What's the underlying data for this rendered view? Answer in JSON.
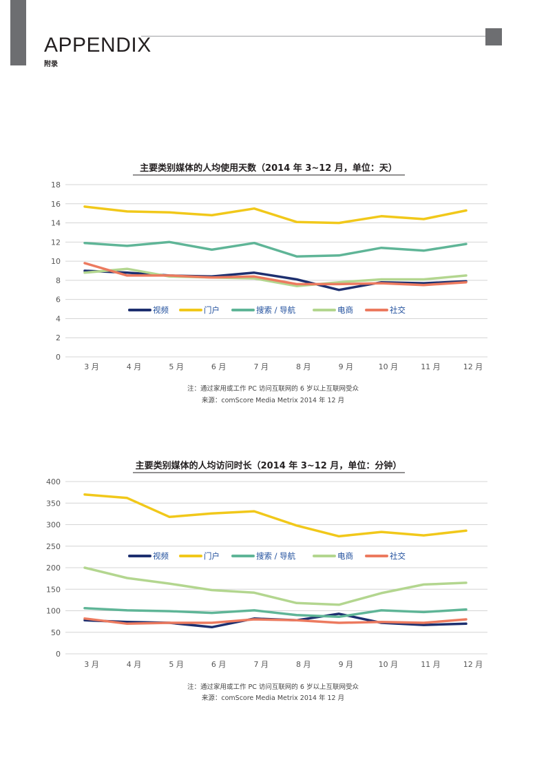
{
  "header": {
    "title": "APPENDIX",
    "subtitle": "附录"
  },
  "legend_colors": {
    "视频": "#1d2f6f",
    "门户": "#f1c81a",
    "搜索 / 导航": "#5fb597",
    "电商": "#b3d68f",
    "社交": "#ec7a5f"
  },
  "chart_data": [
    {
      "type": "line",
      "title": "主要类别媒体的人均使用天数（2014 年 3~12 月，单位：天）",
      "categories": [
        "3 月",
        "4 月",
        "5 月",
        "6 月",
        "7 月",
        "8 月",
        "9 月",
        "10 月",
        "11 月",
        "12 月"
      ],
      "ylim": [
        0,
        18
      ],
      "yticks": [
        0,
        2,
        4,
        6,
        8,
        10,
        12,
        14,
        16,
        18
      ],
      "grid": true,
      "legend_position": "center",
      "series": [
        {
          "name": "视频",
          "color": "#1d2f6f",
          "values": [
            9.0,
            8.8,
            8.5,
            8.4,
            8.8,
            8.1,
            7.0,
            7.8,
            7.7,
            7.9
          ]
        },
        {
          "name": "门户",
          "color": "#f1c81a",
          "values": [
            15.7,
            15.2,
            15.1,
            14.8,
            15.5,
            14.1,
            14.0,
            14.7,
            14.4,
            15.3
          ]
        },
        {
          "name": "搜索 / 导航",
          "color": "#5fb597",
          "values": [
            11.9,
            11.6,
            12.0,
            11.2,
            11.9,
            10.5,
            10.6,
            11.4,
            11.1,
            11.8
          ]
        },
        {
          "name": "电商",
          "color": "#b3d68f",
          "values": [
            8.8,
            9.2,
            8.4,
            8.3,
            8.2,
            7.4,
            7.8,
            8.1,
            8.1,
            8.5
          ]
        },
        {
          "name": "社交",
          "color": "#ec7a5f",
          "values": [
            9.8,
            8.5,
            8.5,
            8.3,
            8.4,
            7.6,
            7.6,
            7.7,
            7.5,
            7.8
          ]
        }
      ],
      "notes": [
        "注：通过家用或工作 PC 访问互联网的 6 岁以上互联网受众",
        "来源：comScore Media Metrix 2014 年 12 月"
      ]
    },
    {
      "type": "line",
      "title": "主要类别媒体的人均访问时长（2014 年 3~12 月，单位：分钟）",
      "categories": [
        "3 月",
        "4 月",
        "5 月",
        "6 月",
        "7 月",
        "8 月",
        "9 月",
        "10 月",
        "11 月",
        "12 月"
      ],
      "ylim": [
        0,
        400
      ],
      "yticks": [
        0,
        50,
        100,
        150,
        200,
        250,
        300,
        350,
        400
      ],
      "grid": true,
      "legend_position": "center",
      "series": [
        {
          "name": "视频",
          "color": "#1d2f6f",
          "values": [
            78,
            74,
            72,
            62,
            82,
            78,
            93,
            72,
            67,
            70
          ]
        },
        {
          "name": "门户",
          "color": "#f1c81a",
          "values": [
            370,
            362,
            318,
            326,
            331,
            298,
            273,
            283,
            275,
            286
          ]
        },
        {
          "name": "搜索 / 导航",
          "color": "#5fb597",
          "values": [
            106,
            101,
            99,
            95,
            101,
            90,
            86,
            101,
            97,
            103
          ]
        },
        {
          "name": "电商",
          "color": "#b3d68f",
          "values": [
            200,
            176,
            163,
            148,
            142,
            118,
            114,
            141,
            161,
            165
          ]
        },
        {
          "name": "社交",
          "color": "#ec7a5f",
          "values": [
            82,
            70,
            72,
            72,
            80,
            78,
            72,
            74,
            72,
            80
          ]
        }
      ],
      "notes": [
        "注：通过家用或工作 PC 访问互联网的 6 岁以上互联网受众",
        "来源：comScore Media Metrix 2014 年 12 月"
      ]
    }
  ]
}
